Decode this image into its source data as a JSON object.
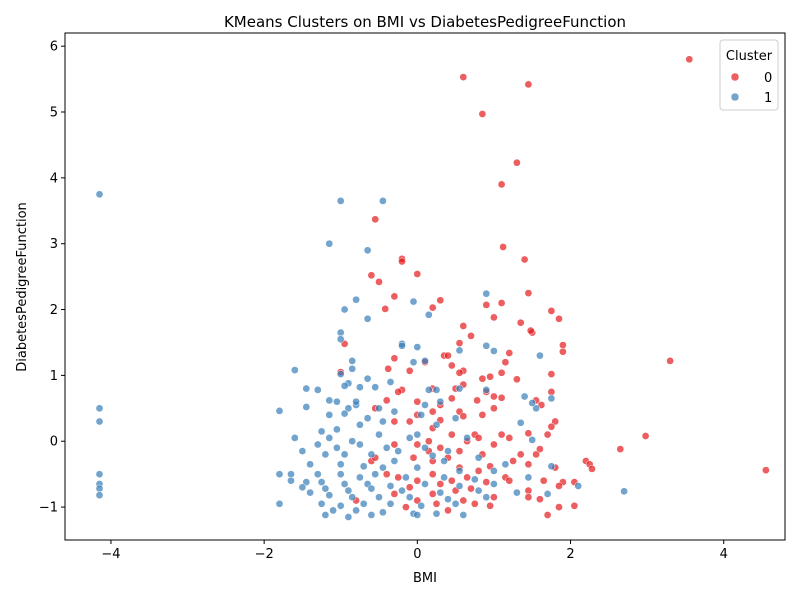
{
  "chart_data": {
    "type": "scatter",
    "title": "KMeans Clusters on BMI vs DiabetesPedigreeFunction",
    "xlabel": "BMI",
    "ylabel": "DiabetesPedigreeFunction",
    "xlim": [
      -4.6,
      4.8
    ],
    "ylim": [
      -1.5,
      6.2
    ],
    "xticks": [
      -4,
      -2,
      0,
      2,
      4
    ],
    "yticks": [
      -1,
      0,
      1,
      2,
      3,
      4,
      5,
      6
    ],
    "grid": false,
    "legend": {
      "title": "Cluster",
      "position": "top-right"
    },
    "series": [
      {
        "name": "0",
        "color": "#e41a1c",
        "points": [
          [
            3.55,
            5.8
          ],
          [
            0.6,
            5.53
          ],
          [
            1.45,
            5.42
          ],
          [
            0.85,
            4.97
          ],
          [
            1.3,
            4.23
          ],
          [
            1.1,
            3.9
          ],
          [
            -0.55,
            3.37
          ],
          [
            1.12,
            2.95
          ],
          [
            -0.6,
            2.52
          ],
          [
            -0.2,
            2.77
          ],
          [
            -0.2,
            2.73
          ],
          [
            0.0,
            2.54
          ],
          [
            1.4,
            2.76
          ],
          [
            -0.5,
            2.42
          ],
          [
            -0.3,
            2.2
          ],
          [
            0.3,
            2.14
          ],
          [
            1.45,
            2.25
          ],
          [
            -0.42,
            2.01
          ],
          [
            0.2,
            2.03
          ],
          [
            0.9,
            2.07
          ],
          [
            1.1,
            2.1
          ],
          [
            1.75,
            1.98
          ],
          [
            1.0,
            1.88
          ],
          [
            1.85,
            1.86
          ],
          [
            1.35,
            1.8
          ],
          [
            0.6,
            1.75
          ],
          [
            1.5,
            1.65
          ],
          [
            1.48,
            1.68
          ],
          [
            -0.95,
            1.48
          ],
          [
            0.55,
            1.49
          ],
          [
            1.9,
            1.46
          ],
          [
            1.9,
            1.36
          ],
          [
            0.35,
            1.3
          ],
          [
            0.4,
            1.3
          ],
          [
            1.2,
            1.34
          ],
          [
            3.3,
            1.22
          ],
          [
            -0.3,
            1.26
          ],
          [
            0.1,
            1.2
          ],
          [
            0.7,
            1.6
          ],
          [
            1.15,
            1.2
          ],
          [
            0.6,
            1.07
          ],
          [
            0.45,
            1.15
          ],
          [
            -0.38,
            1.1
          ],
          [
            -0.1,
            1.07
          ],
          [
            0.55,
            1.04
          ],
          [
            1.1,
            1.04
          ],
          [
            1.75,
            1.02
          ],
          [
            -1.0,
            1.05
          ],
          [
            0.95,
            0.98
          ],
          [
            1.3,
            0.94
          ],
          [
            0.85,
            0.95
          ],
          [
            0.6,
            0.86
          ],
          [
            0.2,
            0.8
          ],
          [
            0.5,
            0.8
          ],
          [
            -0.2,
            0.78
          ],
          [
            0.9,
            0.75
          ],
          [
            1.75,
            0.75
          ],
          [
            0.78,
            0.62
          ],
          [
            1.0,
            0.68
          ],
          [
            1.1,
            0.66
          ],
          [
            -0.25,
            0.75
          ],
          [
            0.45,
            0.65
          ],
          [
            0.3,
            0.55
          ],
          [
            0.0,
            0.6
          ],
          [
            -0.4,
            0.62
          ],
          [
            1.55,
            0.62
          ],
          [
            1.62,
            0.55
          ],
          [
            1.0,
            0.5
          ],
          [
            0.2,
            0.45
          ],
          [
            0.55,
            0.45
          ],
          [
            -0.55,
            0.5
          ],
          [
            0.0,
            0.4
          ],
          [
            0.85,
            0.4
          ],
          [
            0.6,
            0.38
          ],
          [
            0.3,
            0.32
          ],
          [
            -0.1,
            0.3
          ],
          [
            -0.3,
            0.3
          ],
          [
            1.8,
            0.3
          ],
          [
            1.75,
            0.22
          ],
          [
            1.45,
            0.12
          ],
          [
            0.2,
            0.2
          ],
          [
            0.45,
            0.1
          ],
          [
            1.1,
            0.1
          ],
          [
            1.2,
            0.05
          ],
          [
            0.75,
            0.1
          ],
          [
            0.8,
            0.05
          ],
          [
            1.7,
            0.1
          ],
          [
            2.98,
            0.08
          ],
          [
            0.15,
            0.0
          ],
          [
            0.0,
            -0.05
          ],
          [
            1.0,
            -0.05
          ],
          [
            0.65,
            0.0
          ],
          [
            -0.3,
            -0.05
          ],
          [
            0.3,
            -0.1
          ],
          [
            1.6,
            -0.12
          ],
          [
            2.65,
            -0.12
          ],
          [
            0.55,
            -0.15
          ],
          [
            0.85,
            -0.2
          ],
          [
            1.35,
            -0.2
          ],
          [
            1.55,
            -0.2
          ],
          [
            0.4,
            -0.25
          ],
          [
            1.25,
            -0.3
          ],
          [
            -0.05,
            -0.25
          ],
          [
            0.2,
            -0.3
          ],
          [
            2.2,
            -0.3
          ],
          [
            2.25,
            -0.35
          ],
          [
            1.45,
            -0.35
          ],
          [
            0.95,
            -0.38
          ],
          [
            -0.6,
            -0.3
          ],
          [
            0.55,
            -0.4
          ],
          [
            1.8,
            -0.4
          ],
          [
            2.28,
            -0.42
          ],
          [
            0.8,
            -0.45
          ],
          [
            4.55,
            -0.44
          ],
          [
            0.2,
            -0.5
          ],
          [
            -0.4,
            -0.5
          ],
          [
            1.15,
            -0.55
          ],
          [
            0.65,
            -0.55
          ],
          [
            -0.25,
            -0.55
          ],
          [
            0.0,
            -0.6
          ],
          [
            0.45,
            -0.6
          ],
          [
            0.9,
            -0.62
          ],
          [
            1.65,
            -0.6
          ],
          [
            2.05,
            -0.62
          ],
          [
            1.9,
            -0.62
          ],
          [
            0.3,
            -0.65
          ],
          [
            -0.1,
            -0.7
          ],
          [
            0.7,
            -0.72
          ],
          [
            1.45,
            -0.75
          ],
          [
            1.85,
            -0.68
          ],
          [
            0.5,
            -0.75
          ],
          [
            0.2,
            -0.8
          ],
          [
            -0.3,
            -0.8
          ],
          [
            1.0,
            -0.85
          ],
          [
            1.45,
            -0.85
          ],
          [
            0.6,
            -0.9
          ],
          [
            1.6,
            -0.88
          ],
          [
            0.0,
            -0.9
          ],
          [
            2.05,
            -0.98
          ],
          [
            1.85,
            -1.0
          ],
          [
            0.75,
            -0.95
          ],
          [
            0.25,
            -0.95
          ],
          [
            -0.15,
            -1.0
          ],
          [
            1.7,
            -1.12
          ],
          [
            0.95,
            -0.98
          ],
          [
            -0.8,
            -0.9
          ],
          [
            0.4,
            -1.05
          ],
          [
            1.2,
            -0.6
          ],
          [
            -0.55,
            -0.25
          ],
          [
            0.15,
            -0.15
          ]
        ]
      },
      {
        "name": "1",
        "color": "#377eb8",
        "points": [
          [
            -4.15,
            3.75
          ],
          [
            -4.15,
            0.5
          ],
          [
            -4.15,
            0.3
          ],
          [
            -4.15,
            -0.5
          ],
          [
            -4.15,
            -0.65
          ],
          [
            -4.15,
            -0.72
          ],
          [
            -4.15,
            -0.82
          ],
          [
            -1.0,
            3.65
          ],
          [
            -0.45,
            3.65
          ],
          [
            -1.15,
            3.0
          ],
          [
            -0.65,
            2.9
          ],
          [
            -0.8,
            2.15
          ],
          [
            -0.05,
            2.12
          ],
          [
            -0.95,
            2.0
          ],
          [
            0.15,
            1.92
          ],
          [
            0.9,
            2.24
          ],
          [
            -0.65,
            1.86
          ],
          [
            -1.0,
            1.65
          ],
          [
            -0.2,
            1.48
          ],
          [
            -0.2,
            1.45
          ],
          [
            0.0,
            1.43
          ],
          [
            -1.0,
            1.55
          ],
          [
            0.55,
            1.38
          ],
          [
            0.9,
            1.45
          ],
          [
            1.0,
            1.37
          ],
          [
            1.6,
            1.3
          ],
          [
            -0.85,
            1.22
          ],
          [
            -0.05,
            1.2
          ],
          [
            0.1,
            1.22
          ],
          [
            -0.85,
            1.1
          ],
          [
            -1.6,
            1.08
          ],
          [
            -1.0,
            1.02
          ],
          [
            -0.65,
            0.95
          ],
          [
            -0.9,
            0.88
          ],
          [
            -0.95,
            0.84
          ],
          [
            -0.55,
            0.82
          ],
          [
            -1.45,
            0.8
          ],
          [
            -1.3,
            0.78
          ],
          [
            -0.35,
            0.9
          ],
          [
            0.15,
            0.78
          ],
          [
            0.25,
            0.78
          ],
          [
            -0.75,
            0.82
          ],
          [
            0.55,
            0.8
          ],
          [
            0.9,
            0.78
          ],
          [
            1.75,
            0.65
          ],
          [
            1.4,
            0.68
          ],
          [
            -1.15,
            0.62
          ],
          [
            -1.05,
            0.6
          ],
          [
            -0.8,
            0.55
          ],
          [
            -0.9,
            0.5
          ],
          [
            -1.45,
            0.52
          ],
          [
            -1.8,
            0.46
          ],
          [
            -0.5,
            0.5
          ],
          [
            0.1,
            0.55
          ],
          [
            0.3,
            0.6
          ],
          [
            1.55,
            0.5
          ],
          [
            1.5,
            0.58
          ],
          [
            -1.15,
            0.4
          ],
          [
            -0.95,
            0.42
          ],
          [
            -0.65,
            0.35
          ],
          [
            -0.3,
            0.45
          ],
          [
            0.05,
            0.4
          ],
          [
            0.5,
            0.35
          ],
          [
            1.35,
            0.28
          ],
          [
            -0.45,
            0.3
          ],
          [
            -0.75,
            0.25
          ],
          [
            0.25,
            0.25
          ],
          [
            -1.25,
            0.15
          ],
          [
            -1.05,
            0.18
          ],
          [
            -1.6,
            0.05
          ],
          [
            -1.15,
            0.05
          ],
          [
            -0.85,
            0.0
          ],
          [
            -0.5,
            0.1
          ],
          [
            0.0,
            0.1
          ],
          [
            0.65,
            0.05
          ],
          [
            1.5,
            0.02
          ],
          [
            -1.3,
            -0.05
          ],
          [
            -1.05,
            -0.1
          ],
          [
            -0.75,
            -0.05
          ],
          [
            -0.4,
            -0.1
          ],
          [
            0.1,
            -0.1
          ],
          [
            0.4,
            -0.15
          ],
          [
            -1.5,
            -0.15
          ],
          [
            -1.2,
            -0.2
          ],
          [
            -0.95,
            -0.2
          ],
          [
            -0.6,
            -0.2
          ],
          [
            -0.25,
            -0.15
          ],
          [
            0.2,
            -0.22
          ],
          [
            0.8,
            -0.25
          ],
          [
            1.15,
            -0.35
          ],
          [
            -1.4,
            -0.35
          ],
          [
            -1.0,
            -0.35
          ],
          [
            -0.7,
            -0.38
          ],
          [
            -0.45,
            -0.4
          ],
          [
            0.0,
            -0.4
          ],
          [
            0.55,
            -0.45
          ],
          [
            1.0,
            -0.45
          ],
          [
            1.75,
            -0.38
          ],
          [
            -1.8,
            -0.5
          ],
          [
            -1.65,
            -0.5
          ],
          [
            -1.3,
            -0.5
          ],
          [
            -1.0,
            -0.5
          ],
          [
            -0.75,
            -0.55
          ],
          [
            -0.55,
            -0.5
          ],
          [
            -0.15,
            -0.55
          ],
          [
            0.35,
            -0.55
          ],
          [
            0.75,
            -0.58
          ],
          [
            1.45,
            -0.55
          ],
          [
            -1.65,
            -0.6
          ],
          [
            -1.45,
            -0.62
          ],
          [
            -1.25,
            -0.62
          ],
          [
            -0.95,
            -0.65
          ],
          [
            -0.65,
            -0.65
          ],
          [
            -0.35,
            -0.68
          ],
          [
            0.1,
            -0.65
          ],
          [
            0.55,
            -0.68
          ],
          [
            1.0,
            -0.65
          ],
          [
            2.1,
            -0.68
          ],
          [
            -1.5,
            -0.7
          ],
          [
            -1.2,
            -0.72
          ],
          [
            -0.9,
            -0.75
          ],
          [
            -0.6,
            -0.72
          ],
          [
            -0.2,
            -0.75
          ],
          [
            0.3,
            -0.78
          ],
          [
            0.8,
            -0.75
          ],
          [
            1.3,
            -0.78
          ],
          [
            1.7,
            -0.8
          ],
          [
            2.7,
            -0.76
          ],
          [
            -1.4,
            -0.78
          ],
          [
            -1.15,
            -0.82
          ],
          [
            -0.85,
            -0.85
          ],
          [
            -0.5,
            -0.85
          ],
          [
            -0.1,
            -0.85
          ],
          [
            0.4,
            -0.88
          ],
          [
            0.9,
            -0.85
          ],
          [
            -1.8,
            -0.95
          ],
          [
            -1.25,
            -0.95
          ],
          [
            -1.0,
            -0.98
          ],
          [
            -0.7,
            -0.95
          ],
          [
            -0.35,
            -0.95
          ],
          [
            0.05,
            -0.98
          ],
          [
            0.5,
            -0.95
          ],
          [
            -1.1,
            -1.05
          ],
          [
            -0.8,
            -1.05
          ],
          [
            -0.45,
            -1.08
          ],
          [
            -0.05,
            -1.1
          ],
          [
            0.25,
            -1.1
          ],
          [
            0.6,
            -1.12
          ],
          [
            -0.9,
            -1.15
          ],
          [
            -0.6,
            -1.12
          ],
          [
            -1.2,
            -1.12
          ],
          [
            0.0,
            -1.12
          ],
          [
            -0.3,
            -0.3
          ],
          [
            0.35,
            -0.3
          ],
          [
            -0.8,
            0.6
          ],
          [
            -0.1,
            0.05
          ]
        ]
      }
    ]
  }
}
